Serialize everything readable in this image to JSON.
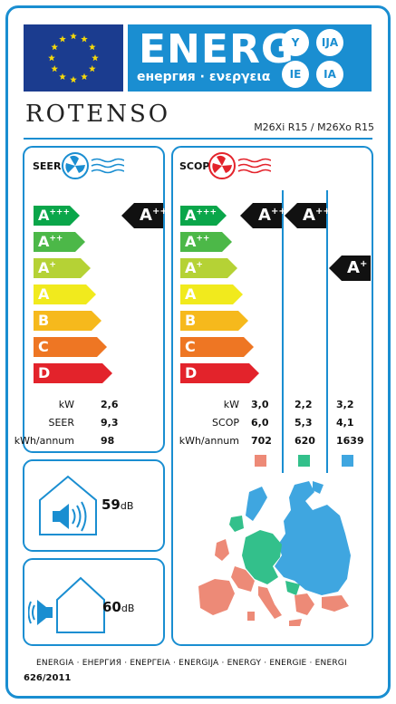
{
  "header": {
    "energ_title": "ENERG",
    "energ_subtitle": "енергия · ενεργεια",
    "lang_codes": [
      "Y",
      "IJA",
      "IE",
      "IA"
    ],
    "brand": "ROTENSO",
    "model": "M26Xi R15 / M26Xo R15"
  },
  "colors": {
    "frame_blue": "#1a8ed1",
    "eu_blue": "#1b3c8f",
    "eu_star": "#f5d90a",
    "class_colors": [
      "#0aa64a",
      "#4cb848",
      "#b5d235",
      "#f1ea1d",
      "#f6b91c",
      "#ee7623",
      "#e3232b"
    ],
    "zone_warm": "#ed8a77",
    "zone_average": "#33c08b",
    "zone_cold": "#3fa6e0"
  },
  "scale": {
    "classes": [
      {
        "base": "A",
        "sup": "+++"
      },
      {
        "base": "A",
        "sup": "++"
      },
      {
        "base": "A",
        "sup": "+"
      },
      {
        "base": "A",
        "sup": ""
      },
      {
        "base": "B",
        "sup": ""
      },
      {
        "base": "C",
        "sup": ""
      },
      {
        "base": "D",
        "sup": ""
      }
    ]
  },
  "seer": {
    "label": "SEER",
    "rating": {
      "base": "A",
      "sup": "+++"
    },
    "rows": [
      {
        "label": "kW",
        "value": "2,6"
      },
      {
        "label": "SEER",
        "value": "9,3"
      },
      {
        "label": "kWh/annum",
        "value": "98"
      }
    ]
  },
  "scop": {
    "label": "SCOP",
    "ratings": [
      {
        "base": "A",
        "sup": "+++"
      },
      {
        "base": "A",
        "sup": "+++"
      },
      {
        "base": "A",
        "sup": "+"
      }
    ],
    "row_labels": [
      "kW",
      "SCOP",
      "kWh/annum"
    ],
    "columns": [
      {
        "values": [
          "3,0",
          "6,0",
          "702"
        ]
      },
      {
        "values": [
          "2,2",
          "5,3",
          "620"
        ]
      },
      {
        "values": [
          "3,2",
          "4,1",
          "1639"
        ]
      }
    ]
  },
  "noise": {
    "indoor": {
      "value": "59",
      "unit": "dB"
    },
    "outdoor": {
      "value": "60",
      "unit": "dB"
    }
  },
  "footer": {
    "languages": "ENERGIA · ЕНЕРГИЯ · ΕΝΕΡΓΕΙΑ · ENERGIJA · ENERGY · ENERGIE · ENERGI",
    "regulation": "626/2011"
  }
}
